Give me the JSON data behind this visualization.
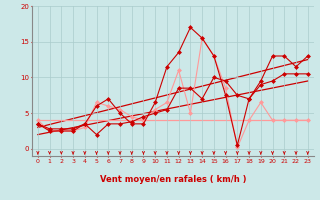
{
  "title": "",
  "xlabel": "Vent moyen/en rafales ( km/h )",
  "bg_color": "#cce8e8",
  "grid_color": "#aacccc",
  "text_color": "#cc0000",
  "xlim": [
    -0.5,
    23.5
  ],
  "ylim": [
    -1.0,
    20
  ],
  "yticks": [
    0,
    5,
    10,
    15,
    20
  ],
  "xticks": [
    0,
    1,
    2,
    3,
    4,
    5,
    6,
    7,
    8,
    9,
    10,
    11,
    12,
    13,
    14,
    15,
    16,
    17,
    18,
    19,
    20,
    21,
    22,
    23
  ],
  "line1_x": [
    0,
    1,
    2,
    3,
    4,
    5,
    6,
    7,
    8,
    9,
    10,
    11,
    12,
    13,
    14,
    15,
    16,
    17,
    18,
    19,
    20,
    21,
    22,
    23
  ],
  "line1_y": [
    4.0,
    2.5,
    2.5,
    2.5,
    3.0,
    6.5,
    6.0,
    5.5,
    4.5,
    4.0,
    5.5,
    6.5,
    11.0,
    5.0,
    15.5,
    13.0,
    8.5,
    0.2,
    4.0,
    6.5,
    4.0,
    4.0,
    4.0,
    4.0
  ],
  "line1_color": "#ff9999",
  "line1_marker": "D",
  "line1_markersize": 2.5,
  "line1_lw": 0.8,
  "line2_x": [
    0,
    1,
    2,
    3,
    4,
    5,
    6,
    7,
    8,
    9,
    10,
    11,
    12,
    13,
    14,
    15,
    16,
    17,
    18,
    19,
    20,
    21,
    22,
    23
  ],
  "line2_y": [
    3.5,
    2.5,
    2.5,
    2.5,
    3.5,
    2.0,
    3.5,
    3.5,
    3.8,
    4.5,
    5.0,
    5.5,
    8.5,
    8.5,
    7.0,
    10.0,
    9.5,
    7.5,
    7.0,
    9.0,
    9.5,
    10.5,
    10.5,
    10.5
  ],
  "line2_color": "#cc0000",
  "line2_marker": "D",
  "line2_markersize": 2.5,
  "line2_lw": 0.8,
  "line3_x": [
    0,
    1,
    2,
    3,
    4,
    5,
    6,
    7,
    8,
    9,
    10,
    11,
    12,
    13,
    14,
    15,
    16,
    17,
    18,
    19,
    20,
    21,
    22,
    23
  ],
  "line3_y": [
    3.5,
    2.8,
    2.8,
    2.8,
    3.5,
    6.0,
    7.0,
    5.0,
    3.5,
    3.5,
    6.5,
    11.5,
    13.5,
    17.0,
    15.5,
    13.0,
    7.5,
    0.5,
    7.0,
    9.5,
    13.0,
    13.0,
    11.5,
    13.0
  ],
  "line3_color": "#cc0000",
  "line3_marker": "D",
  "line3_markersize": 2.5,
  "line3_lw": 0.8,
  "trendline1_x": [
    0,
    23
  ],
  "trendline1_y": [
    2.0,
    9.5
  ],
  "trendline1_color": "#cc0000",
  "trendline1_lw": 0.9,
  "trendline2_x": [
    0,
    23
  ],
  "trendline2_y": [
    3.0,
    12.5
  ],
  "trendline2_color": "#cc0000",
  "trendline2_lw": 0.9,
  "trendline3_x": [
    0,
    23
  ],
  "trendline3_y": [
    4.0,
    4.0
  ],
  "trendline3_color": "#ff9999",
  "trendline3_lw": 0.9,
  "wind_arrows_x": [
    0,
    1,
    2,
    3,
    4,
    5,
    6,
    7,
    8,
    9,
    10,
    11,
    12,
    13,
    14,
    15,
    16,
    17,
    18,
    19,
    20,
    21,
    22,
    23
  ],
  "arrow_color": "#cc0000"
}
